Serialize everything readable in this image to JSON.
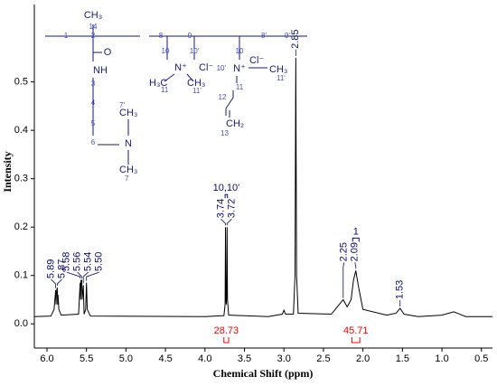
{
  "chart_data": {
    "type": "line",
    "x_label": "Chemical Shift (ppm)",
    "y_label": "Intensity",
    "x": [
      6.16,
      5.95,
      5.91,
      5.89,
      5.885,
      5.88,
      5.87,
      5.865,
      5.86,
      5.85,
      5.82,
      5.6,
      5.58,
      5.575,
      5.57,
      5.56,
      5.555,
      5.55,
      5.54,
      5.535,
      5.53,
      5.51,
      5.5,
      5.49,
      5.45,
      4.0,
      3.76,
      3.745,
      3.74,
      3.735,
      3.73,
      3.725,
      3.72,
      3.715,
      3.7,
      3.2,
      3.02,
      3.0,
      2.98,
      2.88,
      2.86,
      2.85,
      2.84,
      2.82,
      2.4,
      2.3,
      2.25,
      2.2,
      2.15,
      2.12,
      2.09,
      2.06,
      2.0,
      1.7,
      1.58,
      1.53,
      1.48,
      1.3,
      1.0,
      0.85,
      0.7,
      0.36
    ],
    "series": [
      {
        "color": "#000000",
        "values": [
          0.015,
          0.016,
          0.03,
          0.07,
          0.04,
          0.065,
          0.075,
          0.04,
          0.06,
          0.03,
          0.018,
          0.02,
          0.085,
          0.05,
          0.09,
          0.09,
          0.05,
          0.06,
          0.08,
          0.05,
          0.02,
          0.03,
          0.085,
          0.03,
          0.016,
          0.015,
          0.017,
          0.04,
          0.2,
          0.05,
          0.04,
          0.06,
          0.2,
          0.05,
          0.018,
          0.015,
          0.02,
          0.028,
          0.02,
          0.02,
          0.1,
          0.55,
          0.1,
          0.022,
          0.02,
          0.04,
          0.05,
          0.035,
          0.05,
          0.09,
          0.11,
          0.08,
          0.03,
          0.018,
          0.022,
          0.032,
          0.02,
          0.015,
          0.018,
          0.025,
          0.015,
          0.015
        ]
      }
    ],
    "xlim": [
      6.16,
      0.36
    ],
    "ylim": [
      -0.05,
      0.66
    ],
    "xticks": [
      {
        "value": 6,
        "label": "6.0"
      },
      5.5,
      {
        "value": 5,
        "label": "5.0"
      },
      4.5,
      {
        "value": 4,
        "label": "4.0"
      },
      3.5,
      {
        "value": 3,
        "label": "3.0"
      },
      2.5,
      {
        "value": 2,
        "label": "2.0"
      },
      1.5,
      {
        "value": 1,
        "label": "1.0"
      },
      0.5
    ],
    "yticks": [
      {
        "value": 0,
        "label": "0.0"
      },
      0.1,
      0.2,
      0.3,
      0.4,
      0.5
    ],
    "peak_labels": [
      5.89,
      5.87,
      5.58,
      5.56,
      5.54,
      {
        "value": 5.5,
        "label": "5.50"
      },
      3.74,
      3.72,
      2.85,
      2.25,
      2.09,
      1.53
    ],
    "label_color": "#0b0b6e",
    "groups": [
      {
        "label": "10,10'",
        "range": [
          3.745,
          3.715
        ]
      },
      {
        "label": "1",
        "range": [
          2.13,
          2.05
        ]
      }
    ],
    "integrals": [
      {
        "range": [
          3.76,
          3.7
        ],
        "value": 28.73
      },
      {
        "range": [
          2.14,
          2.04
        ],
        "value": 45.71
      }
    ],
    "integral_color": "#ff0000"
  },
  "structure": {
    "labels": [
      "CH₃",
      "14",
      "1",
      "2",
      "O",
      "NH",
      "3",
      "4",
      "5",
      "6",
      "N",
      "CH₃",
      "7'",
      "CH₃",
      "7",
      "8",
      "9",
      "10",
      "10'",
      "N⁺",
      "Cl⁻",
      "H₃C",
      "11",
      "CH₃",
      "11'",
      "8'",
      "9'",
      "10",
      "N⁺",
      "Cl⁻",
      "10'",
      "CH₃",
      "11'",
      "11",
      "12",
      "CH₂",
      "13"
    ]
  }
}
